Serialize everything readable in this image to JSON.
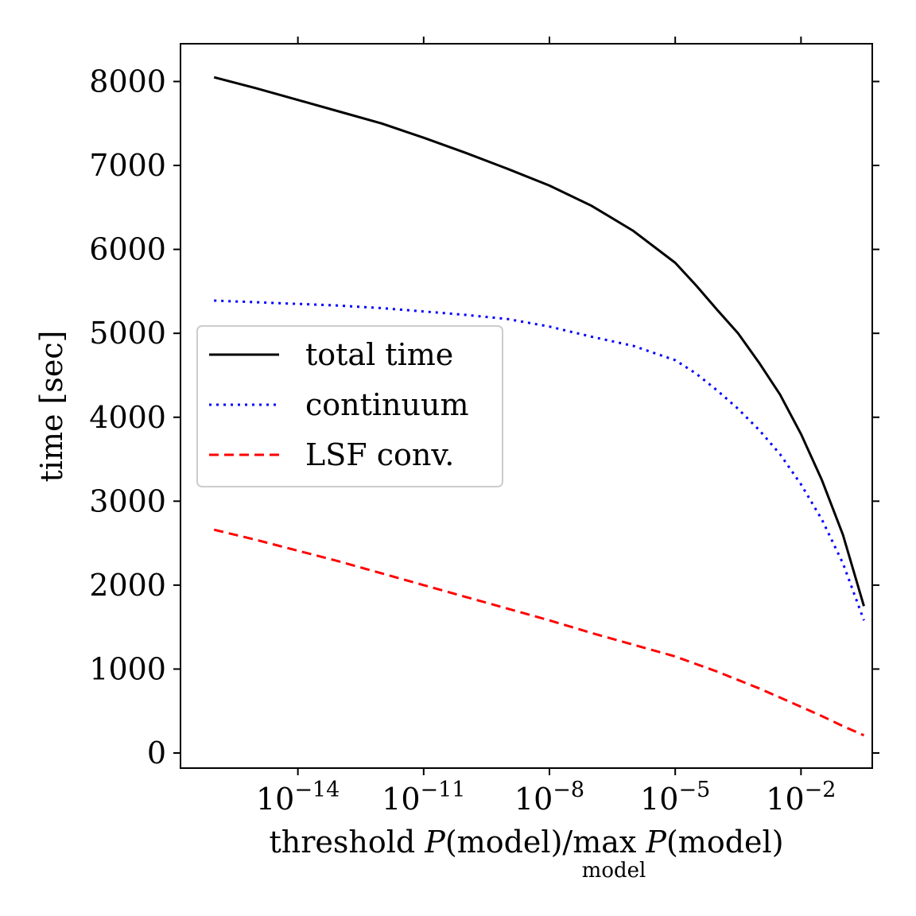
{
  "chart_data": {
    "type": "line",
    "title": "",
    "xscale": "log10",
    "xlim_log10": [
      -16.8,
      -0.3
    ],
    "ylim": [
      -180,
      8450
    ],
    "xlabel": {
      "prefix": "threshold ",
      "p1": "P",
      "mid": "(model)/max ",
      "p2": "P",
      "suffix": "(model)",
      "subscript": "model"
    },
    "ylabel": "time [sec]",
    "grid": false,
    "legend_position": "center-left",
    "x_ticks": [
      {
        "base": "10",
        "exp": "−14",
        "log10": -14
      },
      {
        "base": "10",
        "exp": "−11",
        "log10": -11
      },
      {
        "base": "10",
        "exp": "−8",
        "log10": -8
      },
      {
        "base": "10",
        "exp": "−5",
        "log10": -5
      },
      {
        "base": "10",
        "exp": "−2",
        "log10": -2
      }
    ],
    "y_ticks": [
      {
        "label": "0",
        "value": 0
      },
      {
        "label": "1000",
        "value": 1000
      },
      {
        "label": "2000",
        "value": 2000
      },
      {
        "label": "3000",
        "value": 3000
      },
      {
        "label": "4000",
        "value": 4000
      },
      {
        "label": "5000",
        "value": 5000
      },
      {
        "label": "6000",
        "value": 6000
      },
      {
        "label": "7000",
        "value": 7000
      },
      {
        "label": "8000",
        "value": 8000
      }
    ],
    "x_log10": [
      -16,
      -15,
      -14,
      -13,
      -12,
      -11,
      -10,
      -9,
      -8,
      -7,
      -6,
      -5,
      -4.5,
      -4,
      -3.5,
      -3,
      -2.5,
      -2,
      -1.5,
      -1,
      -0.5
    ],
    "series": [
      {
        "name": "total time",
        "color": "#000000",
        "style": "solid",
        "values": [
          8050,
          7920,
          7780,
          7640,
          7500,
          7330,
          7150,
          6960,
          6760,
          6520,
          6220,
          5840,
          5570,
          5280,
          5000,
          4650,
          4270,
          3800,
          3250,
          2600,
          1750
        ]
      },
      {
        "name": "continuum",
        "color": "#0000ff",
        "style": "dotted",
        "values": [
          5390,
          5370,
          5350,
          5330,
          5300,
          5260,
          5220,
          5170,
          5080,
          4960,
          4850,
          4680,
          4520,
          4320,
          4100,
          3850,
          3560,
          3200,
          2780,
          2260,
          1580
        ]
      },
      {
        "name": "LSF conv.",
        "color": "#ff0000",
        "style": "dashed",
        "values": [
          2660,
          2540,
          2410,
          2280,
          2140,
          2000,
          1860,
          1720,
          1580,
          1430,
          1290,
          1150,
          1060,
          970,
          870,
          770,
          660,
          550,
          440,
          320,
          210
        ]
      }
    ]
  }
}
